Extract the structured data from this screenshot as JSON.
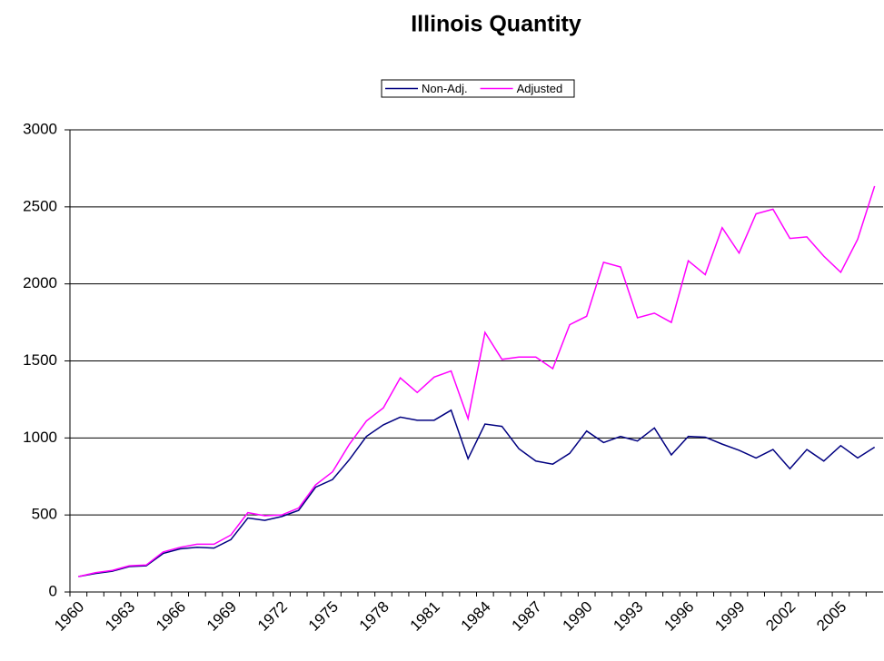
{
  "chart_data": {
    "type": "line",
    "title": "Illinois Quantity",
    "categories": [
      "1960",
      null,
      null,
      "1963",
      null,
      null,
      "1966",
      null,
      null,
      "1969",
      null,
      null,
      "1972",
      null,
      null,
      "1975",
      null,
      null,
      "1978",
      null,
      null,
      "1981",
      null,
      null,
      "1984",
      null,
      null,
      "1987",
      null,
      null,
      "1990",
      null,
      null,
      "1993",
      null,
      null,
      "1996",
      null,
      null,
      "1999",
      null,
      null,
      "2002",
      null,
      null,
      "2005",
      null,
      null
    ],
    "series": [
      {
        "name": "Non-Adj.",
        "color": "#000080",
        "values": [
          100,
          120,
          135,
          165,
          170,
          250,
          280,
          290,
          285,
          340,
          480,
          465,
          490,
          530,
          680,
          730,
          860,
          1010,
          1085,
          1135,
          1115,
          1115,
          1180,
          865,
          1090,
          1075,
          930,
          850,
          830,
          900,
          1045,
          970,
          1010,
          980,
          1065,
          890,
          1010,
          1005,
          960,
          920,
          870,
          925,
          800,
          925,
          850,
          950,
          870,
          940
        ]
      },
      {
        "name": "Adjusted",
        "color": "#ff00ff",
        "values": [
          100,
          125,
          140,
          170,
          175,
          260,
          290,
          310,
          310,
          370,
          515,
          495,
          500,
          545,
          695,
          780,
          960,
          1110,
          1195,
          1390,
          1295,
          1395,
          1435,
          1125,
          1685,
          1510,
          1525,
          1525,
          1450,
          1735,
          1790,
          2140,
          2110,
          1780,
          1810,
          1750,
          2150,
          2060,
          2365,
          2200,
          2455,
          2485,
          2295,
          2305,
          2180,
          2075,
          2290,
          2635
        ]
      }
    ],
    "ylim": [
      0,
      3000
    ],
    "yticks": [
      0,
      500,
      1000,
      1500,
      2000,
      2500,
      3000
    ],
    "grid": true,
    "legend": "top"
  }
}
